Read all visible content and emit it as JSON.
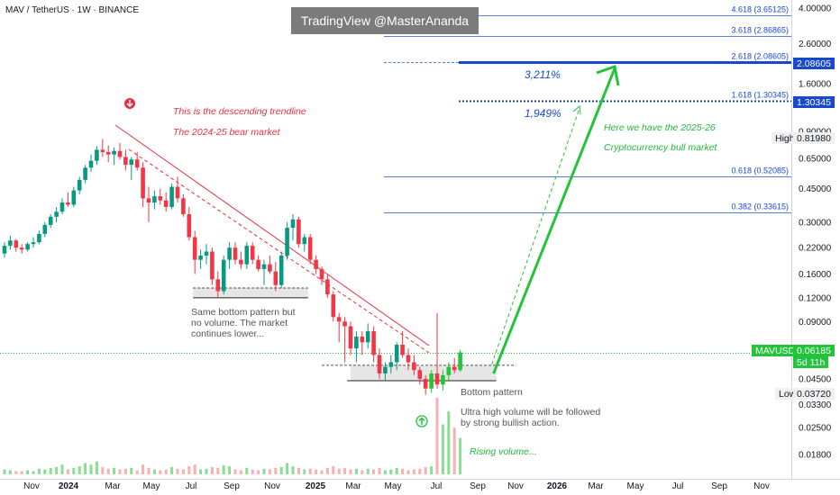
{
  "header": {
    "symbol_line": "MAV / TetherUS · 1W · BINANCE",
    "watermark": "TradingView @MasterAnanda"
  },
  "chart_data": {
    "type": "candlestick",
    "y_scale": "log",
    "ylim": [
      0.0155,
      4.3
    ],
    "y_ticks": [
      {
        "value": 4.0,
        "label": "4.00000"
      },
      {
        "value": 2.6,
        "label": "2.60000"
      },
      {
        "value": 1.6,
        "label": "1.60000"
      },
      {
        "value": 0.9,
        "label": "0.90000"
      },
      {
        "value": 0.65,
        "label": "0.65000"
      },
      {
        "value": 0.45,
        "label": "0.45000"
      },
      {
        "value": 0.3,
        "label": "0.30000"
      },
      {
        "value": 0.22,
        "label": "0.22000"
      },
      {
        "value": 0.16,
        "label": "0.16000"
      },
      {
        "value": 0.12,
        "label": "0.12000"
      },
      {
        "value": 0.09,
        "label": "0.09000"
      },
      {
        "value": 0.045,
        "label": "0.04500"
      },
      {
        "value": 0.033,
        "label": "0.03300"
      },
      {
        "value": 0.025,
        "label": "0.02500"
      },
      {
        "value": 0.018,
        "label": "0.01800"
      }
    ],
    "x_ticks": [
      {
        "label": "Nov",
        "bold": false
      },
      {
        "label": "2024",
        "bold": true
      },
      {
        "label": "Mar",
        "bold": false
      },
      {
        "label": "May",
        "bold": false
      },
      {
        "label": "Jul",
        "bold": false
      },
      {
        "label": "Sep",
        "bold": false
      },
      {
        "label": "Nov",
        "bold": false
      },
      {
        "label": "2025",
        "bold": true
      },
      {
        "label": "Mar",
        "bold": false
      },
      {
        "label": "May",
        "bold": false
      },
      {
        "label": "Jul",
        "bold": false
      },
      {
        "label": "Sep",
        "bold": false
      },
      {
        "label": "Nov",
        "bold": false
      },
      {
        "label": "2026",
        "bold": true
      },
      {
        "label": "Mar",
        "bold": false
      },
      {
        "label": "May",
        "bold": false
      },
      {
        "label": "Jul",
        "bold": false
      },
      {
        "label": "Sep",
        "bold": false
      },
      {
        "label": "Nov",
        "bold": false
      }
    ],
    "fib_levels": [
      {
        "label": "4.618 (3.65125)",
        "value": 3.65125,
        "style": "thin"
      },
      {
        "label": "3.618 (2.86865)",
        "value": 2.86865,
        "style": "thin"
      },
      {
        "label": "2.618 (2.08605)",
        "value": 2.08605,
        "style": "target"
      },
      {
        "label": "1.618 (1.30345)",
        "value": 1.30345,
        "style": "target-dotted"
      },
      {
        "label": "0.618 (0.52085)",
        "value": 0.52085,
        "style": "thin"
      },
      {
        "label": "0.382 (0.33615)",
        "value": 0.33615,
        "style": "thin"
      }
    ],
    "price_badges": [
      {
        "text": "2.08605",
        "value": 2.08605,
        "color": "#1848cc"
      },
      {
        "text": "1.30345",
        "value": 1.30345,
        "color": "#1848cc"
      }
    ],
    "high": {
      "label": "High",
      "value": 0.8198,
      "text": "0.81980"
    },
    "low": {
      "label": "Low",
      "value": 0.0372,
      "text": "0.03720"
    },
    "last": {
      "ticker": "MAVUSDT",
      "value": 0.06185,
      "text": "0.06185",
      "countdown": "5d 11h"
    },
    "gain_labels": [
      "3,211%",
      "1,949%"
    ],
    "candles": [
      [
        0.205,
        0.235,
        0.195,
        0.225
      ],
      [
        0.225,
        0.255,
        0.215,
        0.24
      ],
      [
        0.24,
        0.245,
        0.21,
        0.22
      ],
      [
        0.22,
        0.23,
        0.205,
        0.215
      ],
      [
        0.215,
        0.235,
        0.21,
        0.23
      ],
      [
        0.23,
        0.25,
        0.22,
        0.235
      ],
      [
        0.235,
        0.27,
        0.23,
        0.26
      ],
      [
        0.26,
        0.3,
        0.25,
        0.29
      ],
      [
        0.29,
        0.33,
        0.28,
        0.32
      ],
      [
        0.32,
        0.36,
        0.3,
        0.34
      ],
      [
        0.34,
        0.4,
        0.33,
        0.38
      ],
      [
        0.38,
        0.43,
        0.36,
        0.37
      ],
      [
        0.37,
        0.46,
        0.36,
        0.44
      ],
      [
        0.44,
        0.52,
        0.42,
        0.5
      ],
      [
        0.5,
        0.6,
        0.48,
        0.58
      ],
      [
        0.58,
        0.68,
        0.55,
        0.63
      ],
      [
        0.63,
        0.75,
        0.6,
        0.72
      ],
      [
        0.72,
        0.82,
        0.66,
        0.7
      ],
      [
        0.7,
        0.76,
        0.62,
        0.68
      ],
      [
        0.68,
        0.74,
        0.6,
        0.71
      ],
      [
        0.71,
        0.78,
        0.64,
        0.66
      ],
      [
        0.66,
        0.72,
        0.56,
        0.6
      ],
      [
        0.6,
        0.66,
        0.5,
        0.64
      ],
      [
        0.64,
        0.7,
        0.56,
        0.58
      ],
      [
        0.58,
        0.62,
        0.36,
        0.4
      ],
      [
        0.4,
        0.46,
        0.3,
        0.38
      ],
      [
        0.38,
        0.44,
        0.35,
        0.41
      ],
      [
        0.41,
        0.45,
        0.37,
        0.39
      ],
      [
        0.39,
        0.43,
        0.34,
        0.36
      ],
      [
        0.36,
        0.48,
        0.35,
        0.46
      ],
      [
        0.46,
        0.52,
        0.38,
        0.4
      ],
      [
        0.4,
        0.42,
        0.32,
        0.33
      ],
      [
        0.33,
        0.36,
        0.24,
        0.25
      ],
      [
        0.25,
        0.27,
        0.16,
        0.19
      ],
      [
        0.19,
        0.215,
        0.17,
        0.2
      ],
      [
        0.2,
        0.23,
        0.18,
        0.21
      ],
      [
        0.21,
        0.22,
        0.14,
        0.15
      ],
      [
        0.15,
        0.165,
        0.12,
        0.13
      ],
      [
        0.13,
        0.2,
        0.125,
        0.19
      ],
      [
        0.19,
        0.235,
        0.17,
        0.22
      ],
      [
        0.22,
        0.235,
        0.18,
        0.19
      ],
      [
        0.19,
        0.21,
        0.17,
        0.18
      ],
      [
        0.18,
        0.235,
        0.17,
        0.225
      ],
      [
        0.225,
        0.235,
        0.18,
        0.19
      ],
      [
        0.19,
        0.2,
        0.165,
        0.17
      ],
      [
        0.17,
        0.19,
        0.14,
        0.18
      ],
      [
        0.18,
        0.2,
        0.16,
        0.165
      ],
      [
        0.165,
        0.185,
        0.13,
        0.14
      ],
      [
        0.14,
        0.21,
        0.135,
        0.2
      ],
      [
        0.2,
        0.3,
        0.19,
        0.28
      ],
      [
        0.28,
        0.33,
        0.24,
        0.31
      ],
      [
        0.31,
        0.32,
        0.22,
        0.23
      ],
      [
        0.23,
        0.26,
        0.21,
        0.25
      ],
      [
        0.25,
        0.26,
        0.18,
        0.19
      ],
      [
        0.19,
        0.2,
        0.16,
        0.17
      ],
      [
        0.17,
        0.175,
        0.14,
        0.15
      ],
      [
        0.15,
        0.16,
        0.12,
        0.125
      ],
      [
        0.125,
        0.13,
        0.09,
        0.095
      ],
      [
        0.095,
        0.1,
        0.07,
        0.09
      ],
      [
        0.09,
        0.095,
        0.055,
        0.085
      ],
      [
        0.085,
        0.09,
        0.06,
        0.065
      ],
      [
        0.065,
        0.08,
        0.055,
        0.075
      ],
      [
        0.075,
        0.08,
        0.06,
        0.07
      ],
      [
        0.07,
        0.088,
        0.065,
        0.08
      ],
      [
        0.08,
        0.085,
        0.055,
        0.06
      ],
      [
        0.06,
        0.065,
        0.045,
        0.048
      ],
      [
        0.048,
        0.055,
        0.044,
        0.052
      ],
      [
        0.052,
        0.06,
        0.048,
        0.055
      ],
      [
        0.055,
        0.07,
        0.05,
        0.068
      ],
      [
        0.068,
        0.08,
        0.058,
        0.06
      ],
      [
        0.06,
        0.065,
        0.05,
        0.055
      ],
      [
        0.055,
        0.06,
        0.047,
        0.05
      ],
      [
        0.05,
        0.052,
        0.042,
        0.045
      ],
      [
        0.045,
        0.047,
        0.037,
        0.04
      ],
      [
        0.04,
        0.05,
        0.038,
        0.048
      ],
      [
        0.048,
        0.1,
        0.04,
        0.042
      ],
      [
        0.042,
        0.05,
        0.039,
        0.047
      ],
      [
        0.047,
        0.055,
        0.044,
        0.052
      ],
      [
        0.052,
        0.058,
        0.048,
        0.05
      ],
      [
        0.05,
        0.064,
        0.049,
        0.062
      ]
    ],
    "volumes": [
      6,
      5,
      4,
      4,
      5,
      4,
      7,
      6,
      8,
      9,
      12,
      6,
      8,
      10,
      14,
      12,
      16,
      9,
      7,
      8,
      6,
      7,
      8,
      5,
      12,
      8,
      6,
      5,
      6,
      9,
      7,
      6,
      10,
      12,
      6,
      7,
      9,
      8,
      11,
      10,
      6,
      5,
      8,
      6,
      5,
      7,
      6,
      8,
      9,
      14,
      10,
      8,
      6,
      7,
      6,
      5,
      8,
      10,
      7,
      8,
      6,
      7,
      5,
      7,
      6,
      8,
      5,
      6,
      8,
      7,
      5,
      6,
      7,
      9,
      10,
      95,
      62,
      78,
      58,
      45
    ],
    "volume_bull": [
      true,
      true,
      false,
      false,
      true,
      true,
      true,
      true,
      true,
      true,
      true,
      false,
      true,
      true,
      true,
      true,
      true,
      false,
      false,
      true,
      false,
      false,
      true,
      false,
      false,
      false,
      true,
      false,
      false,
      true,
      false,
      false,
      false,
      false,
      true,
      true,
      false,
      false,
      true,
      true,
      false,
      false,
      true,
      false,
      false,
      true,
      false,
      false,
      true,
      true,
      true,
      false,
      true,
      false,
      false,
      false,
      false,
      false,
      false,
      false,
      false,
      true,
      false,
      true,
      false,
      false,
      true,
      true,
      true,
      false,
      false,
      false,
      false,
      false,
      true,
      false,
      true,
      true,
      false,
      true
    ]
  },
  "annotations": {
    "descending_trendline": "This is the descending trendline",
    "bear_market": "The 2024-25 bear market",
    "bull_market_line1": "Here we have the 2025-26",
    "bull_market_line2": "Cryptocurrency bull market",
    "same_bottom": "Same bottom pattern but\nno volume. The market\ncontinues lower...",
    "bottom_pattern": "Bottom pattern",
    "ultra_volume": "Ultra high volume will be followed\nby strong bullish action.",
    "rising_volume": "Rising volume..."
  },
  "colors": {
    "bull": "#089981",
    "bull_bright": "#22c43a",
    "bear": "#f23645",
    "annotation_red": "#e8303e",
    "annotation_green": "#22b83a",
    "fib_blue": "#1848cc",
    "watermark_bg": "#7b7b7b"
  }
}
